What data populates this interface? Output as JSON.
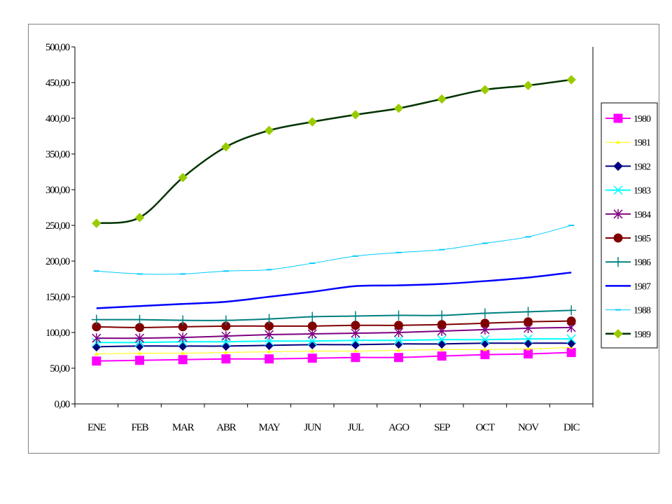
{
  "chart_data": {
    "type": "line",
    "title": "",
    "xlabel": "",
    "ylabel": "",
    "categories": [
      "ENE",
      "FEB",
      "MAR",
      "ABR",
      "MAY",
      "JUN",
      "JUL",
      "AGO",
      "SEP",
      "OCT",
      "NOV",
      "DIC"
    ],
    "ylim": [
      0,
      500
    ],
    "yticks": [
      "0,00",
      "50,00",
      "100,00",
      "150,00",
      "200,00",
      "250,00",
      "300,00",
      "350,00",
      "400,00",
      "450,00",
      "500,00"
    ],
    "grid": false,
    "legend_position": "right",
    "series": [
      {
        "name": "1980",
        "color": "#ff00ff",
        "marker": "square",
        "width": 2,
        "values": [
          60,
          61,
          62,
          63,
          63,
          64,
          65,
          65,
          67,
          69,
          70,
          72
        ]
      },
      {
        "name": "1981",
        "color": "#ffff00",
        "marker": "triangle",
        "width": 1,
        "values": [
          70,
          71,
          71,
          72,
          73,
          74,
          74,
          75,
          76,
          76,
          77,
          79
        ]
      },
      {
        "name": "1982",
        "color": "#000080",
        "marker": "diamond",
        "width": 2,
        "values": [
          80,
          81,
          81,
          81,
          82,
          83,
          83,
          84,
          84,
          85,
          85,
          85
        ]
      },
      {
        "name": "1983",
        "color": "#00ffff",
        "marker": "x",
        "width": 2,
        "values": [
          86,
          86,
          87,
          87,
          88,
          88,
          89,
          89,
          90,
          90,
          91,
          91
        ]
      },
      {
        "name": "1984",
        "color": "#800080",
        "marker": "star",
        "width": 2,
        "values": [
          92,
          92,
          93,
          95,
          97,
          98,
          99,
          100,
          102,
          104,
          106,
          107
        ]
      },
      {
        "name": "1985",
        "color": "#800000",
        "marker": "circle",
        "width": 2,
        "values": [
          108,
          107,
          108,
          109,
          109,
          109,
          110,
          110,
          111,
          113,
          115,
          116
        ]
      },
      {
        "name": "1986",
        "color": "#008080",
        "marker": "plus",
        "width": 2,
        "values": [
          118,
          118,
          117,
          117,
          119,
          122,
          123,
          124,
          124,
          127,
          129,
          131
        ]
      },
      {
        "name": "1987",
        "color": "#0000ff",
        "marker": "none",
        "width": 2.5,
        "values": [
          134,
          137,
          140,
          143,
          150,
          157,
          165,
          166,
          168,
          172,
          177,
          184
        ]
      },
      {
        "name": "1988",
        "color": "#00ccff",
        "marker": "dash",
        "width": 1,
        "values": [
          186,
          182,
          182,
          186,
          188,
          197,
          207,
          212,
          216,
          225,
          234,
          250
        ]
      },
      {
        "name": "1989",
        "color": "#003300",
        "marker": "diamond",
        "markerColor": "#99cc00",
        "width": 2.5,
        "values": [
          253,
          261,
          317,
          360,
          383,
          395,
          405,
          414,
          427,
          440,
          446,
          454
        ]
      }
    ]
  }
}
